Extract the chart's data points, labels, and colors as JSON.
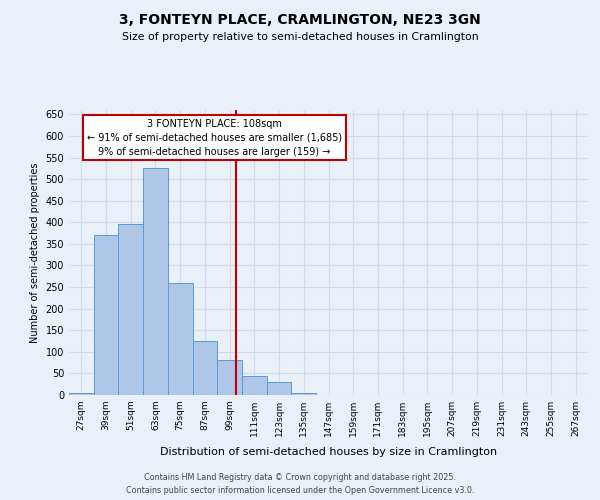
{
  "title": "3, FONTEYN PLACE, CRAMLINGTON, NE23 3GN",
  "subtitle": "Size of property relative to semi-detached houses in Cramlington",
  "xlabel": "Distribution of semi-detached houses by size in Cramlington",
  "ylabel": "Number of semi-detached properties",
  "property_label": "3 FONTEYN PLACE: 108sqm",
  "pct_smaller": 91,
  "count_smaller": 1685,
  "pct_larger": 9,
  "count_larger": 159,
  "bin_labels": [
    "27sqm",
    "39sqm",
    "51sqm",
    "63sqm",
    "75sqm",
    "87sqm",
    "99sqm",
    "111sqm",
    "123sqm",
    "135sqm",
    "147sqm",
    "159sqm",
    "171sqm",
    "183sqm",
    "195sqm",
    "207sqm",
    "219sqm",
    "231sqm",
    "243sqm",
    "255sqm",
    "267sqm"
  ],
  "bin_edges": [
    27,
    39,
    51,
    63,
    75,
    87,
    99,
    111,
    123,
    135,
    147,
    159,
    171,
    183,
    195,
    207,
    219,
    231,
    243,
    255,
    267,
    279
  ],
  "bar_values": [
    5,
    370,
    395,
    525,
    260,
    125,
    80,
    45,
    30,
    5,
    1,
    0,
    0,
    0,
    0,
    0,
    0,
    0,
    0,
    1,
    0
  ],
  "bar_color": "#aec6e8",
  "bar_edge_color": "#5b9bd5",
  "vline_x": 108,
  "vline_color": "#c00000",
  "annotation_box_color": "#c00000",
  "bg_color": "#eaf0f8",
  "grid_color": "#d0dce8",
  "footer_line1": "Contains HM Land Registry data © Crown copyright and database right 2025.",
  "footer_line2": "Contains public sector information licensed under the Open Government Licence v3.0.",
  "ylim": [
    0,
    660
  ],
  "yticks": [
    0,
    50,
    100,
    150,
    200,
    250,
    300,
    350,
    400,
    450,
    500,
    550,
    600,
    650
  ]
}
